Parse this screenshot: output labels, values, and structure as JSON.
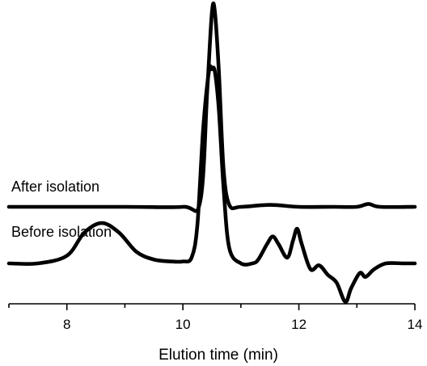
{
  "chart_data": {
    "type": "line",
    "title": "",
    "xlabel": "Elution time (min)",
    "ylabel": "",
    "xlim": [
      7,
      14
    ],
    "xticks": [
      8,
      10,
      12,
      14
    ],
    "xtick_labels": [
      "8",
      "10",
      "12",
      "14"
    ],
    "grid": false,
    "legend": "none",
    "series": [
      {
        "name": "After isolation",
        "color": "#000000",
        "x": [
          7.0,
          9.0,
          10.0,
          10.3,
          10.42,
          10.5,
          10.55,
          10.62,
          10.7,
          10.8,
          11.0,
          11.5,
          12.0,
          12.6,
          13.0,
          13.2,
          13.4,
          14.0
        ],
        "y": [
          0,
          0,
          0,
          0.03,
          0.6,
          1.0,
          1.01,
          0.7,
          0.2,
          0.01,
          0,
          0.01,
          0,
          0,
          0,
          0.015,
          0,
          0
        ]
      },
      {
        "name": "Before isolation",
        "color": "#000000",
        "x": [
          7.0,
          7.5,
          8.0,
          8.3,
          8.6,
          8.9,
          9.2,
          9.5,
          9.8,
          10.0,
          10.15,
          10.25,
          10.35,
          10.45,
          10.5,
          10.55,
          10.62,
          10.7,
          10.8,
          11.0,
          11.2,
          11.3,
          11.45,
          11.55,
          11.65,
          11.8,
          11.9,
          11.97,
          12.05,
          12.2,
          12.35,
          12.5,
          12.65,
          12.8,
          12.9,
          13.05,
          13.15,
          13.3,
          13.5,
          13.8,
          14.0
        ],
        "y": [
          0,
          0,
          0.04,
          0.16,
          0.21,
          0.16,
          0.06,
          0.02,
          0.01,
          0.01,
          0.03,
          0.2,
          0.7,
          1.0,
          1.01,
          1.0,
          0.8,
          0.4,
          0.08,
          0,
          0,
          0.02,
          0.1,
          0.14,
          0.1,
          0.03,
          0.12,
          0.18,
          0.1,
          -0.03,
          -0.01,
          -0.06,
          -0.1,
          -0.2,
          -0.13,
          -0.05,
          -0.07,
          -0.03,
          0,
          0,
          0
        ]
      }
    ]
  }
}
